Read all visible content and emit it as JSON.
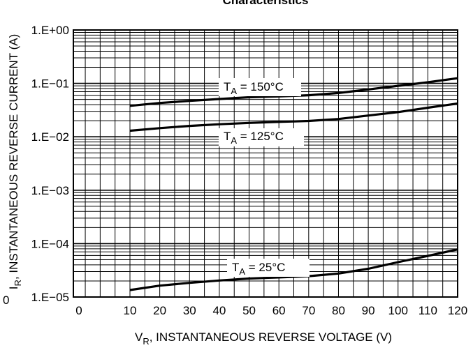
{
  "chart_data": {
    "type": "line",
    "title": "Characteristics",
    "xlabel": {
      "main": "V",
      "sub": "R",
      "rest": ", INSTANTANEOUS REVERSE VOLTAGE (V)"
    },
    "ylabel": {
      "main": "I",
      "sub": "R",
      "rest": ", INSTANTANEOUS REVERSE CURRENT (A)"
    },
    "x_scale": "linear",
    "y_scale": "log",
    "xlim": [
      0,
      120
    ],
    "ylim": [
      1e-05,
      1
    ],
    "grid": true,
    "x_ticks": [
      "0",
      "10",
      "20",
      "30",
      "40",
      "50",
      "60",
      "70",
      "80",
      "90",
      "100",
      "110",
      "120"
    ],
    "y_ticks": [
      "1.E+00",
      "1.E−01",
      "1.E−02",
      "1.E−03",
      "1.E−04",
      "1.E−05",
      "0"
    ],
    "series": [
      {
        "name": "T_A = 150°C",
        "x": [
          10,
          20,
          30,
          40,
          50,
          60,
          70,
          80,
          90,
          100,
          110,
          120
        ],
        "y": [
          0.038,
          0.043,
          0.047,
          0.051,
          0.055,
          0.057,
          0.06,
          0.066,
          0.077,
          0.09,
          0.105,
          0.125
        ]
      },
      {
        "name": "T_A = 125°C",
        "x": [
          10,
          20,
          30,
          40,
          50,
          60,
          70,
          80,
          90,
          100,
          110,
          120
        ],
        "y": [
          0.013,
          0.0145,
          0.016,
          0.0172,
          0.0182,
          0.019,
          0.0198,
          0.0215,
          0.025,
          0.029,
          0.035,
          0.042
        ]
      },
      {
        "name": "T_A = 25°C",
        "x": [
          10,
          20,
          30,
          40,
          50,
          60,
          70,
          80,
          90,
          100,
          110,
          120
        ],
        "y": [
          1.35e-05,
          1.63e-05,
          1.84e-05,
          2.04e-05,
          2.22e-05,
          2.33e-05,
          2.46e-05,
          2.75e-05,
          3.38e-05,
          4.5e-05,
          5.9e-05,
          7.8e-05
        ]
      }
    ],
    "annotations": [
      {
        "main": "T",
        "sub": "A",
        "rest": " = 150°C"
      },
      {
        "main": "T",
        "sub": "A",
        "rest": " = 125°C"
      },
      {
        "main": "T",
        "sub": "A",
        "rest": " = 25°C"
      }
    ],
    "colors": {
      "line": "#000000",
      "grid": "#000000",
      "background": "#ffffff"
    }
  }
}
